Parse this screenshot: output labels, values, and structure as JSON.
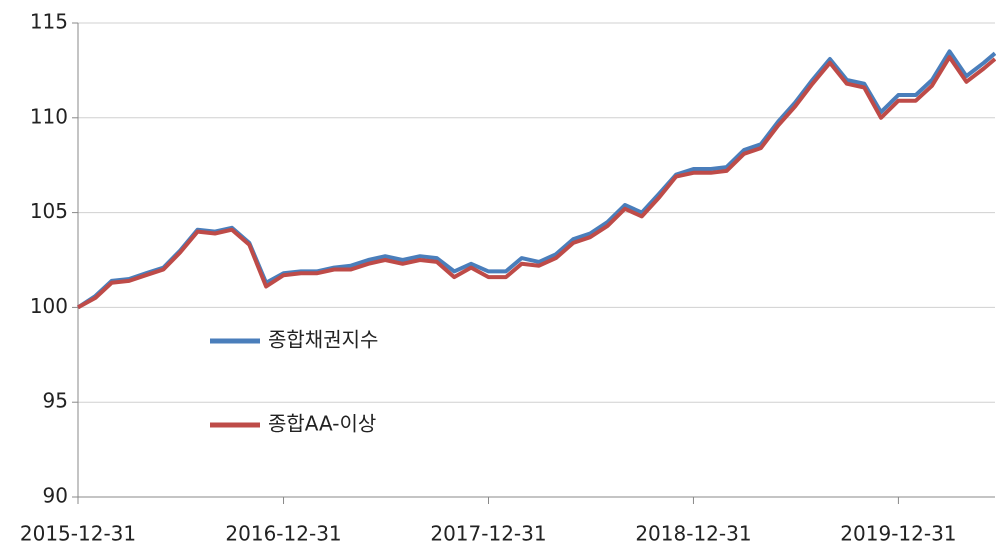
{
  "chart_data": {
    "type": "line",
    "x": [
      "2015-12-31",
      "2016-01-31",
      "2016-02-29",
      "2016-03-31",
      "2016-04-30",
      "2016-05-31",
      "2016-06-30",
      "2016-07-31",
      "2016-08-31",
      "2016-09-30",
      "2016-10-31",
      "2016-11-30",
      "2016-12-31",
      "2017-01-31",
      "2017-02-28",
      "2017-03-31",
      "2017-04-30",
      "2017-05-31",
      "2017-06-30",
      "2017-07-31",
      "2017-08-31",
      "2017-09-30",
      "2017-10-31",
      "2017-11-30",
      "2017-12-31",
      "2018-01-31",
      "2018-02-28",
      "2018-03-31",
      "2018-04-30",
      "2018-05-31",
      "2018-06-30",
      "2018-07-31",
      "2018-08-31",
      "2018-09-30",
      "2018-10-31",
      "2018-11-30",
      "2018-12-31",
      "2019-01-31",
      "2019-02-28",
      "2019-03-31",
      "2019-04-30",
      "2019-05-31",
      "2019-06-30",
      "2019-07-31",
      "2019-08-31",
      "2019-09-30",
      "2019-10-31",
      "2019-11-30",
      "2019-12-31",
      "2020-01-31",
      "2020-02-29",
      "2020-03-31",
      "2020-04-30",
      "2020-05-31",
      "2020-06-20"
    ],
    "series": [
      {
        "name": "종합채권지수",
        "color": "#4a7ebb",
        "values": [
          100.0,
          100.6,
          101.4,
          101.5,
          101.8,
          102.1,
          103.0,
          104.1,
          104.0,
          104.2,
          103.4,
          101.3,
          101.8,
          101.9,
          101.9,
          102.1,
          102.2,
          102.5,
          102.7,
          102.5,
          102.7,
          102.6,
          101.9,
          102.3,
          101.9,
          101.9,
          102.6,
          102.4,
          102.8,
          103.6,
          103.9,
          104.5,
          105.4,
          105.0,
          106.0,
          107.0,
          107.3,
          107.3,
          107.4,
          108.3,
          108.6,
          109.8,
          110.8,
          112.0,
          113.1,
          112.0,
          111.8,
          110.3,
          111.2,
          111.2,
          112.0,
          113.5,
          112.2,
          112.9,
          113.4
        ]
      },
      {
        "name": "종합AA-이상",
        "color": "#be4b48",
        "values": [
          100.0,
          100.5,
          101.3,
          101.4,
          101.7,
          102.0,
          102.9,
          104.0,
          103.9,
          104.1,
          103.3,
          101.1,
          101.7,
          101.8,
          101.8,
          102.0,
          102.0,
          102.3,
          102.5,
          102.3,
          102.5,
          102.4,
          101.6,
          102.1,
          101.6,
          101.6,
          102.3,
          102.2,
          102.6,
          103.4,
          103.7,
          104.3,
          105.2,
          104.8,
          105.8,
          106.9,
          107.1,
          107.1,
          107.2,
          108.1,
          108.4,
          109.6,
          110.6,
          111.8,
          112.9,
          111.8,
          111.6,
          110.0,
          110.9,
          110.9,
          111.7,
          113.2,
          111.9,
          112.6,
          113.1
        ]
      }
    ],
    "xlim": [
      "2015-12-31",
      "2020-06-20"
    ],
    "xticks": [
      "2015-12-31",
      "2016-12-31",
      "2017-12-31",
      "2018-12-31",
      "2019-12-31"
    ],
    "ylim": [
      90,
      115
    ],
    "yticks": [
      90,
      95,
      100,
      105,
      110,
      115
    ],
    "grid": true,
    "legend": "left"
  }
}
